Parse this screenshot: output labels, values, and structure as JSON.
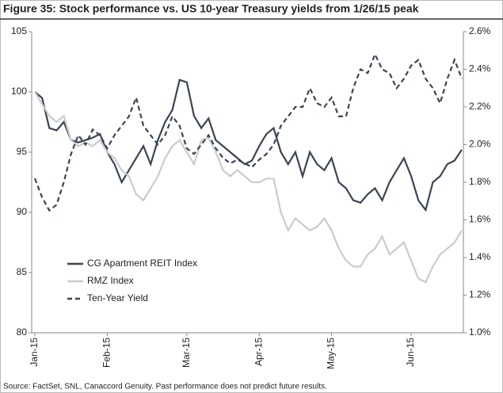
{
  "chart_data": {
    "type": "line",
    "title": "Figure 35: Stock performance vs. US 10-year Treasury yields from 1/26/15 peak",
    "source": "Source: FactSet, SNL, Canaccord Genuity.  Past performance does not predict future results.",
    "categories": [
      "Jan-15",
      null,
      null,
      null,
      null,
      null,
      null,
      null,
      null,
      null,
      "Feb-15",
      null,
      null,
      null,
      null,
      null,
      null,
      null,
      null,
      null,
      null,
      "Mar-15",
      null,
      null,
      null,
      null,
      null,
      null,
      null,
      null,
      null,
      "Apr-15",
      null,
      null,
      null,
      null,
      null,
      null,
      null,
      null,
      null,
      "May-15",
      null,
      null,
      null,
      null,
      null,
      null,
      null,
      null,
      null,
      null,
      "Jun-15",
      null,
      null,
      null,
      null,
      null,
      null,
      null
    ],
    "ylim": [
      80,
      105
    ],
    "yticks": [
      80,
      85,
      90,
      95,
      100,
      105
    ],
    "y2lim": [
      1.0,
      2.6
    ],
    "y2ticks": [
      {
        "value": 1.0,
        "label": "1.0%"
      },
      {
        "value": 1.2,
        "label": "1.2%"
      },
      {
        "value": 1.4,
        "label": "1.4%"
      },
      {
        "value": 1.6,
        "label": "1.6%"
      },
      {
        "value": 1.8,
        "label": "1.8%"
      },
      {
        "value": 2.0,
        "label": "2.0%"
      },
      {
        "value": 2.2,
        "label": "2.2%"
      },
      {
        "value": 2.4,
        "label": "2.4%"
      },
      {
        "value": 2.6,
        "label": "2.6%"
      }
    ],
    "legend": "lower left",
    "series": [
      {
        "name": "CG Apartment REIT Index",
        "color": "#3b4552",
        "dashed": false,
        "values": [
          100,
          99.5,
          97,
          96.8,
          97.5,
          96,
          95.8,
          96,
          96.2,
          96.5,
          95,
          94,
          92.5,
          93.5,
          94.5,
          95.5,
          94,
          96,
          97.5,
          98.5,
          101,
          100.8,
          98,
          97,
          97.8,
          96,
          95.5,
          95,
          94.5,
          94,
          94.3,
          95.5,
          96.5,
          97,
          95,
          94,
          95,
          93,
          95,
          94,
          93.5,
          94.5,
          92.5,
          92,
          91,
          90.8,
          91.5,
          92,
          91,
          92.5,
          93.5,
          94.5,
          93,
          91,
          90.2,
          92.5,
          93,
          94,
          94.3,
          95.2
        ]
      },
      {
        "name": "RMZ Index",
        "color": "#c8ccd0",
        "dashed": false,
        "values": [
          100,
          99,
          98,
          97.5,
          98,
          96,
          95.5,
          95.8,
          95.5,
          96,
          95,
          94.5,
          93.5,
          93,
          91.5,
          91,
          92,
          93,
          94.5,
          95.5,
          96,
          95,
          94,
          96,
          96.2,
          95,
          93.5,
          93,
          93.5,
          93,
          92.5,
          92.5,
          92.8,
          92.8,
          90,
          88.5,
          89.5,
          89,
          88.5,
          88.8,
          89.5,
          88.5,
          87,
          86,
          85.5,
          85.5,
          86.5,
          87,
          88,
          86.5,
          87,
          87.5,
          86,
          84.5,
          84.2,
          85.5,
          86.5,
          87,
          87.5,
          88.5
        ]
      },
      {
        "name": "Ten-Year Yield",
        "color": "#3b4552",
        "dashed": true,
        "axis": "y2",
        "values": [
          1.82,
          1.72,
          1.65,
          1.68,
          1.8,
          1.95,
          2.05,
          2.0,
          2.08,
          2.05,
          1.98,
          2.05,
          2.1,
          2.15,
          2.25,
          2.1,
          2.05,
          2.0,
          2.05,
          2.15,
          2.1,
          1.98,
          1.95,
          2.0,
          2.05,
          1.98,
          1.93,
          1.9,
          1.92,
          1.9,
          1.88,
          1.92,
          1.95,
          2.0,
          2.1,
          2.15,
          2.2,
          2.2,
          2.3,
          2.22,
          2.2,
          2.25,
          2.15,
          2.15,
          2.3,
          2.4,
          2.38,
          2.48,
          2.4,
          2.38,
          2.3,
          2.35,
          2.42,
          2.45,
          2.35,
          2.3,
          2.22,
          2.35,
          2.45,
          2.35
        ]
      }
    ]
  }
}
